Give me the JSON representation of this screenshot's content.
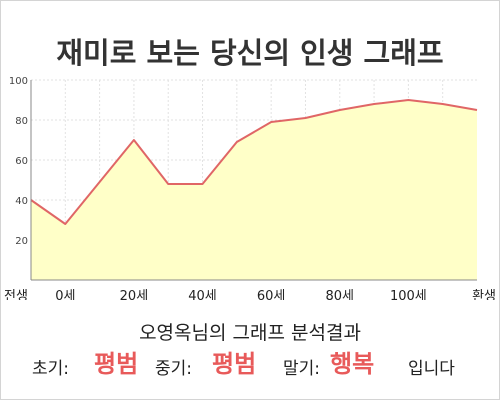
{
  "title": "재미로 보는 당신의 인생 그래프",
  "colors": {
    "line": "#e06666",
    "area": "#ffffc8",
    "highlight": "#e85a5a",
    "grid": "#e2e2e2"
  },
  "chart_data": {
    "type": "area",
    "title": "재미로 보는 당신의 인생 그래프",
    "xlabel": "",
    "ylabel": "",
    "ylim": [
      0,
      100
    ],
    "yticks": [
      "20",
      "40",
      "60",
      "80",
      "100"
    ],
    "x_tick_labels": [
      "전생",
      "0세",
      "20세",
      "40세",
      "60세",
      "80세",
      "100세",
      "환생"
    ],
    "series": [
      {
        "points": [
          {
            "x": "전생",
            "y": 40
          },
          {
            "x": "0세",
            "y": 28
          },
          {
            "x": "10세",
            "y": 49
          },
          {
            "x": "20세",
            "y": 70
          },
          {
            "x": "30세",
            "y": 48
          },
          {
            "x": "40세",
            "y": 48
          },
          {
            "x": "50세",
            "y": 69
          },
          {
            "x": "60세",
            "y": 79
          },
          {
            "x": "70세",
            "y": 81
          },
          {
            "x": "80세",
            "y": 85
          },
          {
            "x": "90세",
            "y": 88
          },
          {
            "x": "100세",
            "y": 90
          },
          {
            "x": "110세",
            "y": 88
          },
          {
            "x": "환생",
            "y": 85
          }
        ]
      }
    ],
    "grid": true,
    "legend": "none"
  },
  "result": {
    "heading": "오영옥님의 그래프 분석결과",
    "early_label": "초기:",
    "early_value": "평범",
    "mid_label": "중기:",
    "mid_value": "평범",
    "late_label": "말기:",
    "late_value": "행복",
    "suffix": "입니다"
  }
}
